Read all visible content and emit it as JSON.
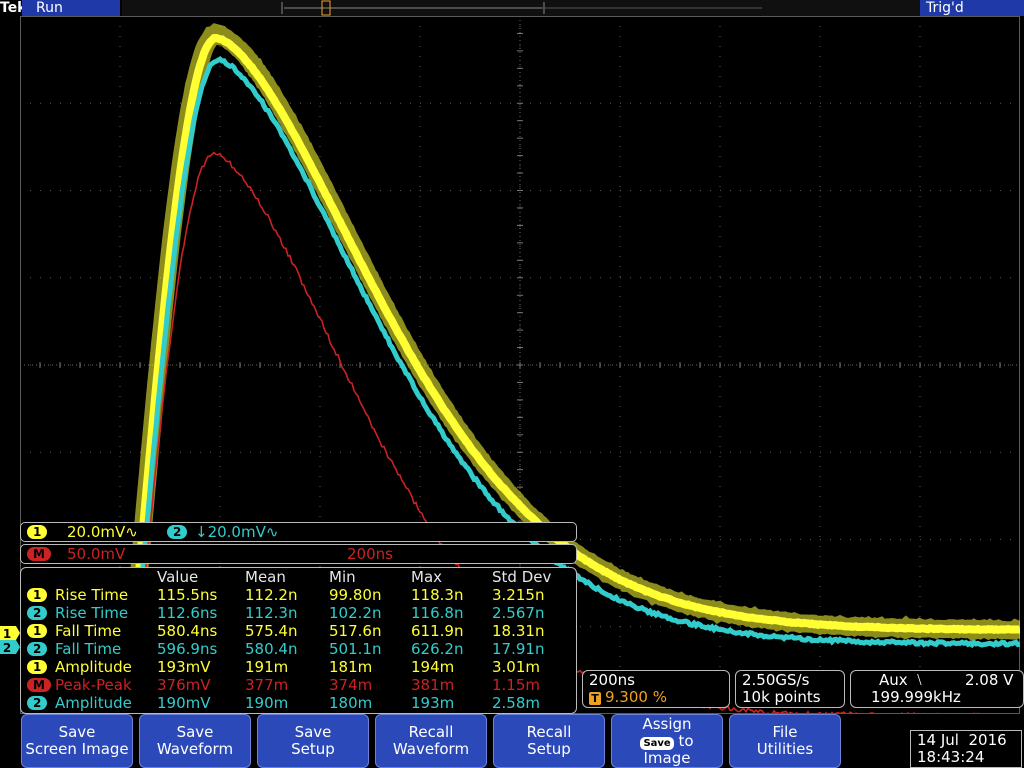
{
  "header": {
    "brand": "Tek",
    "run_status": "Run",
    "trigger_status": "Trig'd"
  },
  "markers": {
    "trigger": "T",
    "ch1": "1",
    "ch2": "2"
  },
  "channel_bar": {
    "ch1_chip": "1",
    "ch1_scale": "20.0mV∿",
    "ch2_chip": "2",
    "ch2_scale": "↓20.0mV∿"
  },
  "math_bar": {
    "chip": "M",
    "scale": "50.0mV",
    "time": "200ns"
  },
  "measurements": {
    "headers": [
      "Value",
      "Mean",
      "Min",
      "Max",
      "Std Dev"
    ],
    "rows": [
      {
        "chip": "1",
        "name": "Rise Time",
        "value": "115.5ns",
        "mean": "112.2n",
        "min": "99.80n",
        "max": "118.3n",
        "std": "3.215n",
        "color": "#ffff33"
      },
      {
        "chip": "2",
        "name": "Rise Time",
        "value": "112.6ns",
        "mean": "112.3n",
        "min": "102.2n",
        "max": "116.8n",
        "std": "2.567n",
        "color": "#33cccc"
      },
      {
        "chip": "1",
        "name": "Fall Time",
        "value": "580.4ns",
        "mean": "575.4n",
        "min": "517.6n",
        "max": "611.9n",
        "std": "18.31n",
        "color": "#ffff33"
      },
      {
        "chip": "2",
        "name": "Fall Time",
        "value": "596.9ns",
        "mean": "580.4n",
        "min": "501.1n",
        "max": "626.2n",
        "std": "17.91n",
        "color": "#33cccc"
      },
      {
        "chip": "1",
        "name": "Amplitude",
        "value": "193mV",
        "mean": "191m",
        "min": "181m",
        "max": "194m",
        "std": "3.01m",
        "color": "#ffff33"
      },
      {
        "chip": "M",
        "name": "Peak-Peak",
        "value": "376mV",
        "mean": "377m",
        "min": "374m",
        "max": "381m",
        "std": "1.15m",
        "color": "#cc2222"
      },
      {
        "chip": "2",
        "name": "Amplitude",
        "value": "190mV",
        "mean": "190m",
        "min": "180m",
        "max": "193m",
        "std": "2.58m",
        "color": "#33cccc"
      }
    ]
  },
  "horizontal": {
    "scale": "200ns",
    "trigger_chip": "T",
    "position": "9.300 %"
  },
  "acquisition": {
    "sample_rate": "2.50GS/s",
    "record_length": "10k points"
  },
  "trigger": {
    "source": "Aux",
    "slope": "⧵",
    "level": "2.08 V",
    "frequency": "199.999kHz"
  },
  "menu": {
    "save_screen": [
      "Save",
      "Screen Image"
    ],
    "save_waveform": [
      "Save",
      "Waveform"
    ],
    "save_setup": [
      "Save",
      "Setup"
    ],
    "recall_waveform": [
      "Recall",
      "Waveform"
    ],
    "recall_setup": [
      "Recall",
      "Setup"
    ],
    "assign": [
      "Assign",
      "Save",
      "to",
      "Image"
    ],
    "file_utilities": [
      "File",
      "Utilities"
    ]
  },
  "datetime": {
    "date": "14 Jul  2016",
    "time": "18:43:24"
  },
  "colors": {
    "ch1": "#ffff33",
    "ch2": "#33cccc",
    "math": "#cc2222",
    "background": "#000000",
    "grid": "#606060",
    "menu_blue": "#2b49b8",
    "trigger_orange": "#f0a020"
  }
}
